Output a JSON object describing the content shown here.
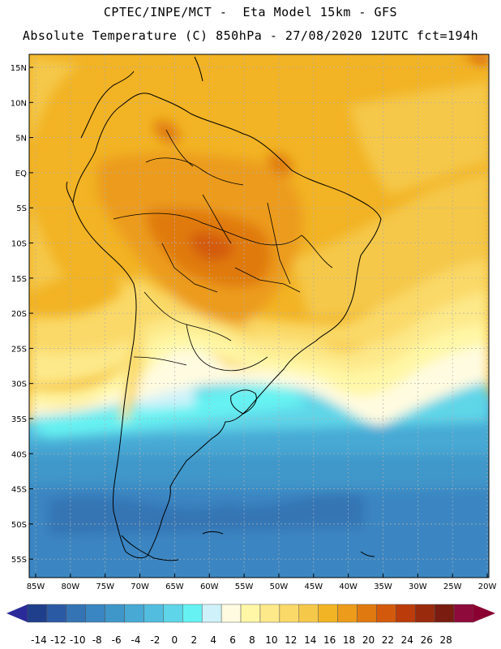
{
  "header": {
    "line1": "CPTEC/INPE/MCT -  Eta Model 15km - GFS",
    "line2": "Absolute Temperature (C) 850hPa - 27/08/2020 12UTC fct=194h"
  },
  "axes": {
    "lat_labels": [
      "15N",
      "10N",
      "5N",
      "EQ",
      "5S",
      "10S",
      "15S",
      "20S",
      "25S",
      "30S",
      "35S",
      "40S",
      "45S",
      "50S",
      "55S"
    ],
    "lon_labels": [
      "85W",
      "80W",
      "75W",
      "70W",
      "65W",
      "60W",
      "55W",
      "50W",
      "45W",
      "40W",
      "35W",
      "30W",
      "25W",
      "20W"
    ]
  },
  "colorbar": {
    "labels": [
      "-14",
      "-12",
      "-10",
      "-8",
      "-6",
      "-4",
      "-2",
      "0",
      "2",
      "4",
      "6",
      "8",
      "10",
      "12",
      "14",
      "16",
      "18",
      "20",
      "22",
      "24",
      "26",
      "28"
    ],
    "colors": [
      "#1f3f8c",
      "#2b5aa5",
      "#3474b4",
      "#3a86c2",
      "#3f97c9",
      "#47a9d4",
      "#52bddf",
      "#5ed5e8",
      "#66f2f2",
      "#cff2fa",
      "#fffbe0",
      "#fff7a6",
      "#fde98a",
      "#fad968",
      "#f5c84a",
      "#f2b324",
      "#ec9b1a",
      "#e07a10",
      "#d35a0c",
      "#bb3c0a",
      "#9a2a0c",
      "#7a1c10",
      "#8e0a3a"
    ],
    "under_color": "#2a2a9a",
    "over_color": "#8a0030"
  }
}
